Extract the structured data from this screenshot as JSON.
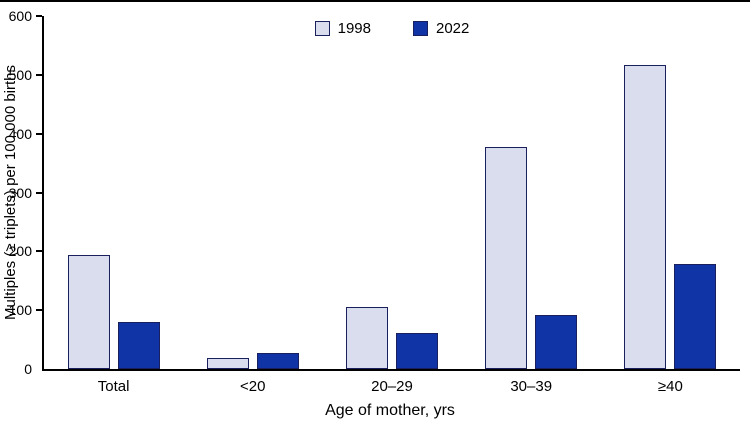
{
  "chart_data": {
    "type": "bar",
    "title": "",
    "xlabel": "Age of mother, yrs",
    "ylabel": "Multiples (≥ triplets) per 100,000 births",
    "categories": [
      "Total",
      "<20",
      "20–29",
      "30–39",
      "≥40"
    ],
    "series": [
      {
        "name": "1998",
        "color": "#d9ddee",
        "values": [
          193,
          18,
          105,
          377,
          517
        ]
      },
      {
        "name": "2022",
        "color": "#1034a6",
        "values": [
          80,
          27,
          62,
          92,
          179
        ]
      }
    ],
    "ylim": [
      0,
      600
    ],
    "yticks": [
      0,
      100,
      200,
      300,
      400,
      500,
      600
    ],
    "grid": false,
    "legend_position": "top-center",
    "bar_border_color": "#1a1f5e"
  }
}
